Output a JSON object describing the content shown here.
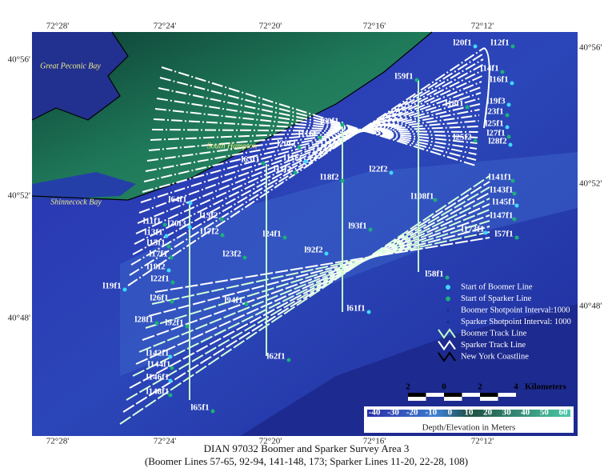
{
  "coordinates": {
    "top": [
      "72°28'",
      "72°24'",
      "72°20'",
      "72°16'",
      "72°12'"
    ],
    "bottom": [
      "72°28'",
      "72°24'",
      "72°20'",
      "72°16'",
      "72°12'"
    ],
    "left": [
      "40°56'",
      "40°52'",
      "40°48'"
    ],
    "right": [
      "40°56'",
      "40°52'",
      "40°48'"
    ]
  },
  "places": [
    "Great Peconic Bay",
    "South Hampton",
    "Shinnecock Bay"
  ],
  "line_labels": [
    "l20f1",
    "l12f1",
    "l14f1",
    "l16f1",
    "l59f1",
    "l18f1",
    "l19f3",
    "l23f1",
    "l60f1",
    "l25f1",
    "l27f1",
    "l25f2",
    "l28f2",
    "l11f4",
    "l20f2",
    "l11f3",
    "l63f1",
    "l11f2",
    "l22f2",
    "l18f2",
    "l141f1",
    "l64f1",
    "l143f1",
    "l108f1",
    "l145f1",
    "l13f2",
    "l11f1",
    "l20f3",
    "l93f1",
    "l147f1",
    "l13f1",
    "l17f2",
    "l24f1",
    "l173f1",
    "l57f1",
    "l15f1",
    "l92f2",
    "l17f1",
    "l23f2",
    "l19f2",
    "l22f1",
    "l58f1",
    "l19f1",
    "l26f1",
    "l94f1",
    "l61f1",
    "l28f1",
    "l92f1",
    "l142f1",
    "l62f1",
    "l144f1",
    "l146f1",
    "l148f1",
    "l65f1"
  ],
  "legend": [
    "Start of Boomer Line",
    "Start of Sparker Line",
    "Boomer Shotpoint Interval:1000",
    "Sparker Shotpoint Interval: 1000",
    "Boomer Track Line",
    "Sparker Track Line",
    "New York Coastline"
  ],
  "scale_bar": {
    "ticks": [
      "2",
      "0",
      "2",
      "4"
    ],
    "unit": "Kilometers"
  },
  "colorbar": {
    "ticks": [
      "-40",
      "-30",
      "-20",
      "-10",
      "0",
      "10",
      "20",
      "30",
      "40",
      "50",
      "60"
    ],
    "label": "Depth/Elevation in Meters"
  },
  "caption": [
    "DIAN 97032  Boomer and Sparker Survey Area 3",
    "(Boomer Lines 57-65, 92-94, 141-148, 173; Sparker Lines 11-20, 22-28, 108)"
  ]
}
